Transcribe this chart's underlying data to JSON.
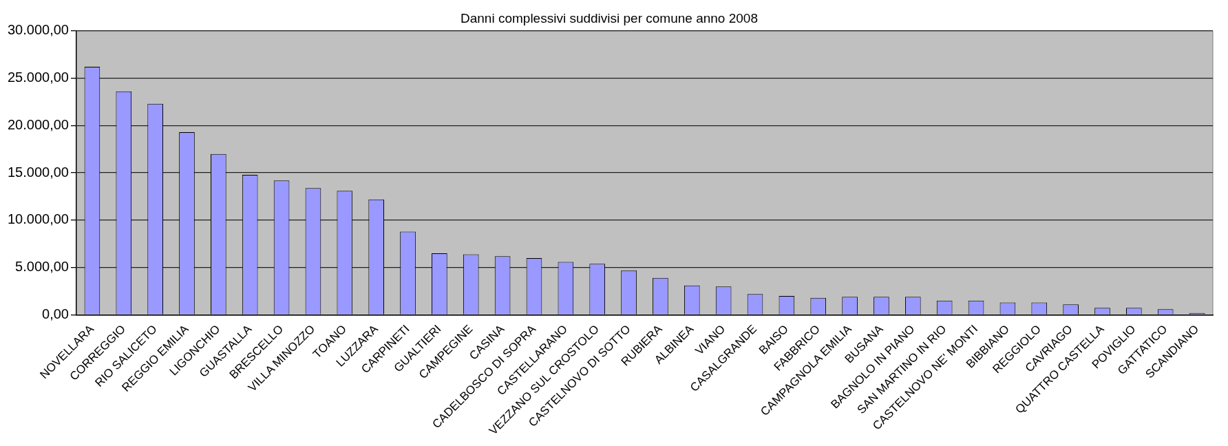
{
  "chart_data": {
    "type": "bar",
    "title": "Danni complessivi suddivisi per comune anno 2008",
    "categories": [
      "NOVELLARA",
      "CORREGGIO",
      "RIO SALICETO",
      "REGGIO EMILIA",
      "LIGONCHIO",
      "GUASTALLA",
      "BRESCELLO",
      "VILLA MINOZZO",
      "TOANO",
      "LUZZARA",
      "CARPINETI",
      "GUALTIERI",
      "CAMPEGINE",
      "CASINA",
      "CADELBOSCO DI SOPRA",
      "CASTELLARANO",
      "VEZZANO SUL CROSTOLO",
      "CASTELNOVO DI SOTTO",
      "RUBIERA",
      "ALBINEA",
      "VIANO",
      "CASALGRANDE",
      "BAISO",
      "FABBRICO",
      "CAMPAGNOLA EMILIA",
      "BUSANA",
      "BAGNOLO IN PIANO",
      "SAN MARTINO IN RIO",
      "CASTELNOVO NE' MONTI",
      "BIBBIANO",
      "REGGIOLO",
      "CAVRIAGO",
      "QUATTRO CASTELLA",
      "POVIGLIO",
      "GATTATICO",
      "SCANDIANO"
    ],
    "values": [
      26200,
      23600,
      22300,
      19300,
      17000,
      14800,
      14200,
      13400,
      13100,
      12200,
      8800,
      6500,
      6400,
      6200,
      6000,
      5600,
      5400,
      4700,
      3900,
      3100,
      3000,
      2200,
      2000,
      1800,
      1900,
      1900,
      1900,
      1500,
      1500,
      1300,
      1300,
      1100,
      750,
      750,
      600,
      200
    ],
    "color": "#9999ff",
    "ylim": [
      0,
      30000
    ],
    "yticks": [
      {
        "value": 0,
        "label": "0,00"
      },
      {
        "value": 5000,
        "label": "5.000,00"
      },
      {
        "value": 10000,
        "label": "10.000,00"
      },
      {
        "value": 15000,
        "label": "15.000,00"
      },
      {
        "value": 20000,
        "label": "20.000,00"
      },
      {
        "value": 25000,
        "label": "25.000,00"
      },
      {
        "value": 30000,
        "label": "30.000,00"
      }
    ],
    "grid": "y",
    "legend": false
  }
}
